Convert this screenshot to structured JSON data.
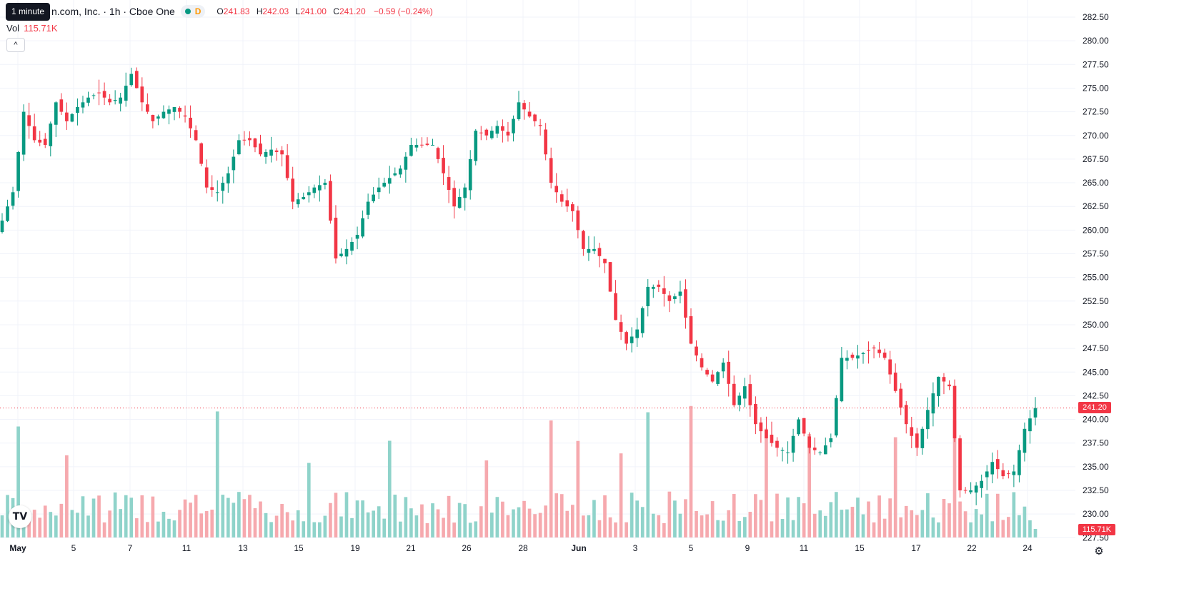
{
  "header": {
    "symbol_title": "n.com, Inc. · 1h · Cboe One",
    "tooltip": "1 minute",
    "status_letter": "D",
    "open_label": "O",
    "open": "241.83",
    "high_label": "H",
    "high": "242.03",
    "low_label": "L",
    "low": "241.00",
    "close_label": "C",
    "close": "241.20",
    "change": "−0.59 (−0.24%)"
  },
  "volume": {
    "label": "Vol",
    "value": "115.71K"
  },
  "price_axis": {
    "last_price_tag": "241.20",
    "volume_tag": "115.71K",
    "ticks": [
      "282.50",
      "280.00",
      "277.50",
      "275.00",
      "272.50",
      "270.00",
      "267.50",
      "265.00",
      "262.50",
      "260.00",
      "257.50",
      "255.00",
      "252.50",
      "250.00",
      "247.50",
      "245.00",
      "242.50",
      "240.00",
      "237.50",
      "235.00",
      "232.50",
      "230.00",
      "227.50"
    ]
  },
  "time_axis": {
    "labels": [
      "May",
      "5",
      "7",
      "11",
      "13",
      "15",
      "19",
      "21",
      "26",
      "28",
      "Jun",
      "3",
      "5",
      "9",
      "11",
      "15",
      "17",
      "22",
      "24"
    ],
    "bold_labels": [
      "May",
      "Jun"
    ]
  },
  "colors": {
    "up": "#089981",
    "down": "#f23645",
    "up_volume": "#8fd3ca",
    "down_volume": "#f6a9ae",
    "grid": "#f0f3fa"
  },
  "icons": {
    "collapse": "chevron-up-icon",
    "logo": "tradingview-logo-icon",
    "settings": "settings-icon"
  },
  "chart_data": {
    "type": "candlestick",
    "title": "n.com, Inc. · 1h · Cboe One",
    "ylim": [
      227.5,
      283.5
    ],
    "y_axis_side": "right",
    "grid": true,
    "last_price": 241.2,
    "x_date_labels": [
      "May",
      "5",
      "7",
      "11",
      "13",
      "15",
      "19",
      "21",
      "26",
      "28",
      "Jun",
      "3",
      "5",
      "9",
      "11",
      "15",
      "17",
      "22",
      "24"
    ],
    "close_anchors": [
      [
        0,
        261.0
      ],
      [
        2,
        264.0
      ],
      [
        4,
        272.5
      ],
      [
        6,
        269.5
      ],
      [
        8,
        269.0
      ],
      [
        10,
        273.5
      ],
      [
        12,
        271.5
      ],
      [
        14,
        273.0
      ],
      [
        16,
        274.0
      ],
      [
        18,
        274.5
      ],
      [
        20,
        273.5
      ],
      [
        22,
        274.0
      ],
      [
        24,
        276.5
      ],
      [
        26,
        273.5
      ],
      [
        28,
        271.5
      ],
      [
        30,
        272.5
      ],
      [
        32,
        273.0
      ],
      [
        34,
        272.0
      ],
      [
        36,
        269.5
      ],
      [
        38,
        264.5
      ],
      [
        40,
        264.0
      ],
      [
        42,
        266.0
      ],
      [
        44,
        269.5
      ],
      [
        46,
        269.5
      ],
      [
        48,
        268.0
      ],
      [
        50,
        268.5
      ],
      [
        52,
        268.0
      ],
      [
        54,
        263.0
      ],
      [
        56,
        263.5
      ],
      [
        58,
        264.5
      ],
      [
        60,
        265.0
      ],
      [
        62,
        257.0
      ],
      [
        64,
        258.0
      ],
      [
        66,
        259.5
      ],
      [
        68,
        263.0
      ],
      [
        70,
        264.5
      ],
      [
        72,
        265.5
      ],
      [
        74,
        266.5
      ],
      [
        76,
        269.0
      ],
      [
        78,
        269.0
      ],
      [
        80,
        269.0
      ],
      [
        82,
        266.0
      ],
      [
        84,
        262.5
      ],
      [
        86,
        264.5
      ],
      [
        88,
        270.5
      ],
      [
        90,
        270.0
      ],
      [
        92,
        271.0
      ],
      [
        94,
        270.0
      ],
      [
        96,
        273.5
      ],
      [
        98,
        272.0
      ],
      [
        100,
        271.0
      ],
      [
        102,
        265.0
      ],
      [
        104,
        263.0
      ],
      [
        106,
        262.0
      ],
      [
        108,
        258.0
      ],
      [
        110,
        258.0
      ],
      [
        112,
        256.5
      ],
      [
        114,
        250.5
      ],
      [
        116,
        248.0
      ],
      [
        118,
        249.5
      ],
      [
        120,
        254.0
      ],
      [
        122,
        254.0
      ],
      [
        124,
        252.5
      ],
      [
        126,
        253.5
      ],
      [
        128,
        248.0
      ],
      [
        130,
        245.5
      ],
      [
        132,
        244.0
      ],
      [
        134,
        246.0
      ],
      [
        136,
        241.5
      ],
      [
        138,
        243.5
      ],
      [
        140,
        239.5
      ],
      [
        142,
        238.0
      ],
      [
        144,
        237.0
      ],
      [
        146,
        236.5
      ],
      [
        148,
        240.0
      ],
      [
        150,
        237.0
      ],
      [
        152,
        236.5
      ],
      [
        154,
        238.0
      ],
      [
        156,
        246.5
      ],
      [
        158,
        246.5
      ],
      [
        160,
        247.0
      ],
      [
        162,
        247.5
      ],
      [
        164,
        246.5
      ],
      [
        166,
        243.0
      ],
      [
        168,
        239.5
      ],
      [
        170,
        237.0
      ],
      [
        172,
        241.0
      ],
      [
        174,
        244.5
      ],
      [
        176,
        243.5
      ],
      [
        178,
        232.5
      ],
      [
        180,
        232.5
      ],
      [
        182,
        233.5
      ],
      [
        184,
        235.5
      ],
      [
        186,
        234.0
      ],
      [
        188,
        234.5
      ],
      [
        190,
        239.0
      ],
      [
        192,
        241.2
      ]
    ],
    "volume": {
      "last_value": "115.71K",
      "peak_positions": [
        3,
        12,
        40,
        57,
        72,
        90,
        102,
        107,
        115,
        120,
        128,
        142,
        150,
        166,
        177
      ]
    }
  }
}
